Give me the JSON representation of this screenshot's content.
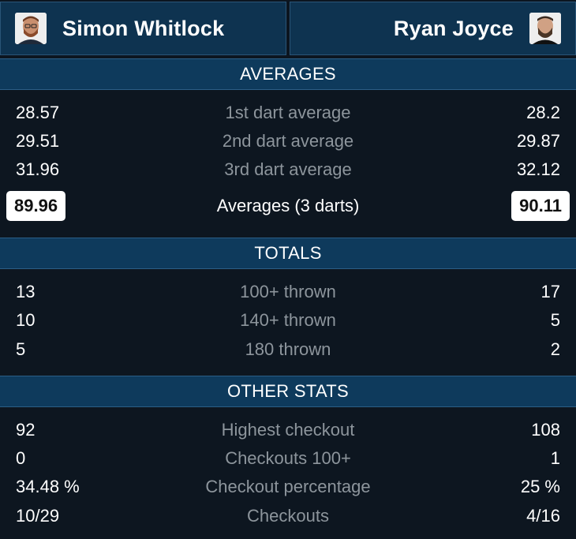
{
  "players": {
    "left": {
      "name": "Simon Whitlock",
      "avatar_icon": "player-photo-icon"
    },
    "right": {
      "name": "Ryan Joyce",
      "avatar_icon": "player-photo-icon"
    }
  },
  "sections": {
    "averages": {
      "title": "AVERAGES",
      "rows": [
        {
          "label": "1st dart average",
          "left": "28.57",
          "right": "28.2"
        },
        {
          "label": "2nd dart average",
          "left": "29.51",
          "right": "29.87"
        },
        {
          "label": "3rd dart average",
          "left": "31.96",
          "right": "32.12"
        }
      ],
      "summary": {
        "label": "Averages (3 darts)",
        "left": "89.96",
        "right": "90.11"
      }
    },
    "totals": {
      "title": "TOTALS",
      "rows": [
        {
          "label": "100+ thrown",
          "left": "13",
          "right": "17"
        },
        {
          "label": "140+ thrown",
          "left": "10",
          "right": "5"
        },
        {
          "label": "180 thrown",
          "left": "5",
          "right": "2"
        }
      ]
    },
    "other": {
      "title": "OTHER STATS",
      "rows": [
        {
          "label": "Highest checkout",
          "left": "92",
          "right": "108"
        },
        {
          "label": "Checkouts 100+",
          "left": "0",
          "right": "1"
        },
        {
          "label": "Checkout percentage",
          "left": "34.48 %",
          "right": "25 %"
        },
        {
          "label": "Checkouts",
          "left": "10/29",
          "right": "4/16"
        }
      ]
    }
  },
  "colors": {
    "background": "#0d1620",
    "header": "#0e3a5c",
    "label": "#8d959c",
    "badge": "#ffffff"
  }
}
